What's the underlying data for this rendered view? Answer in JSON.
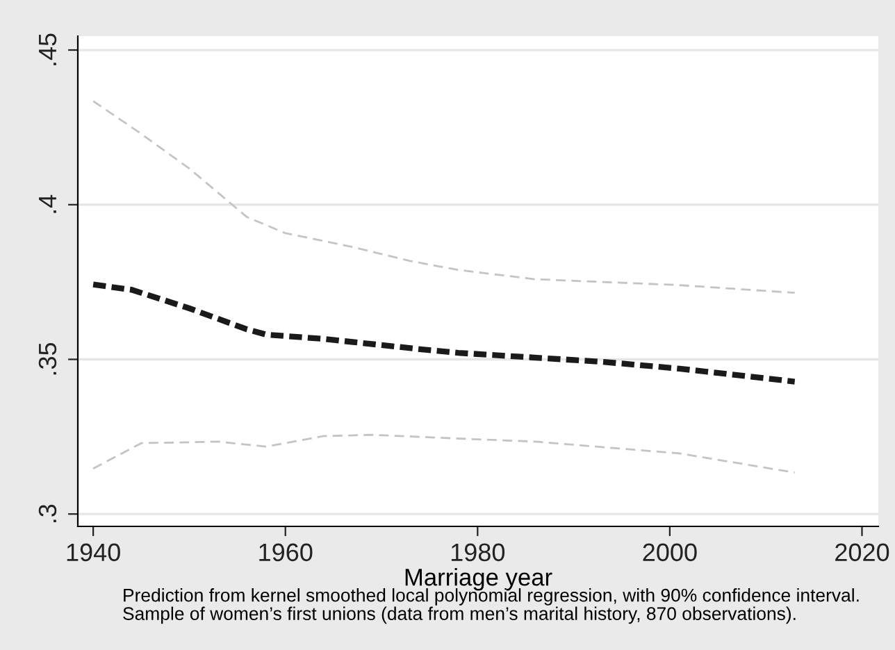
{
  "chart_data": {
    "type": "line",
    "xlabel": "Marriage year",
    "annotations": [
      "Prediction from kernel smoothed local polynomial regression, with 90% confidence interval.\nSample of women’s first unions (data from men’s marital history, 870 observations)."
    ],
    "series": [
      {
        "color": "#c4c4c4",
        "line_style": "dashed",
        "x": [
          1940,
          1945,
          1950,
          1956,
          1960,
          1967,
          1973,
          1978,
          1986,
          2001,
          2013
        ],
        "values": [
          0.4335,
          0.4229,
          0.4117,
          0.396,
          0.3908,
          0.3863,
          0.3818,
          0.3789,
          0.3759,
          0.374,
          0.3715
        ]
      },
      {
        "color": "#1a1a1a",
        "line_style": "dashed",
        "x": [
          1940,
          1944,
          1950,
          1956,
          1958,
          1964,
          1974,
          1978,
          1993,
          2001,
          2013
        ],
        "values": [
          0.3742,
          0.3725,
          0.3665,
          0.3597,
          0.358,
          0.3566,
          0.3533,
          0.3521,
          0.3492,
          0.347,
          0.3428
        ]
      },
      {
        "color": "#c4c4c4",
        "line_style": "dashed",
        "x": [
          1940,
          1945,
          1953,
          1958,
          1964,
          1969,
          1978,
          1986,
          2001,
          2013
        ],
        "values": [
          0.3147,
          0.3229,
          0.3234,
          0.3218,
          0.3252,
          0.3256,
          0.3244,
          0.3234,
          0.3196,
          0.3134
        ]
      }
    ],
    "xlim": [
      1938.4,
      2021.7
    ],
    "xticks": [
      1940,
      1960,
      1980,
      2000,
      2020
    ],
    "ylim": [
      0.296,
      0.4545
    ],
    "yticks": [
      {
        "value": 0.3,
        "label": ".3"
      },
      {
        "value": 0.35,
        "label": ".35"
      },
      {
        "value": 0.4,
        "label": ".4"
      },
      {
        "value": 0.45,
        "label": ".45"
      }
    ],
    "grid": "y",
    "legend": false
  }
}
